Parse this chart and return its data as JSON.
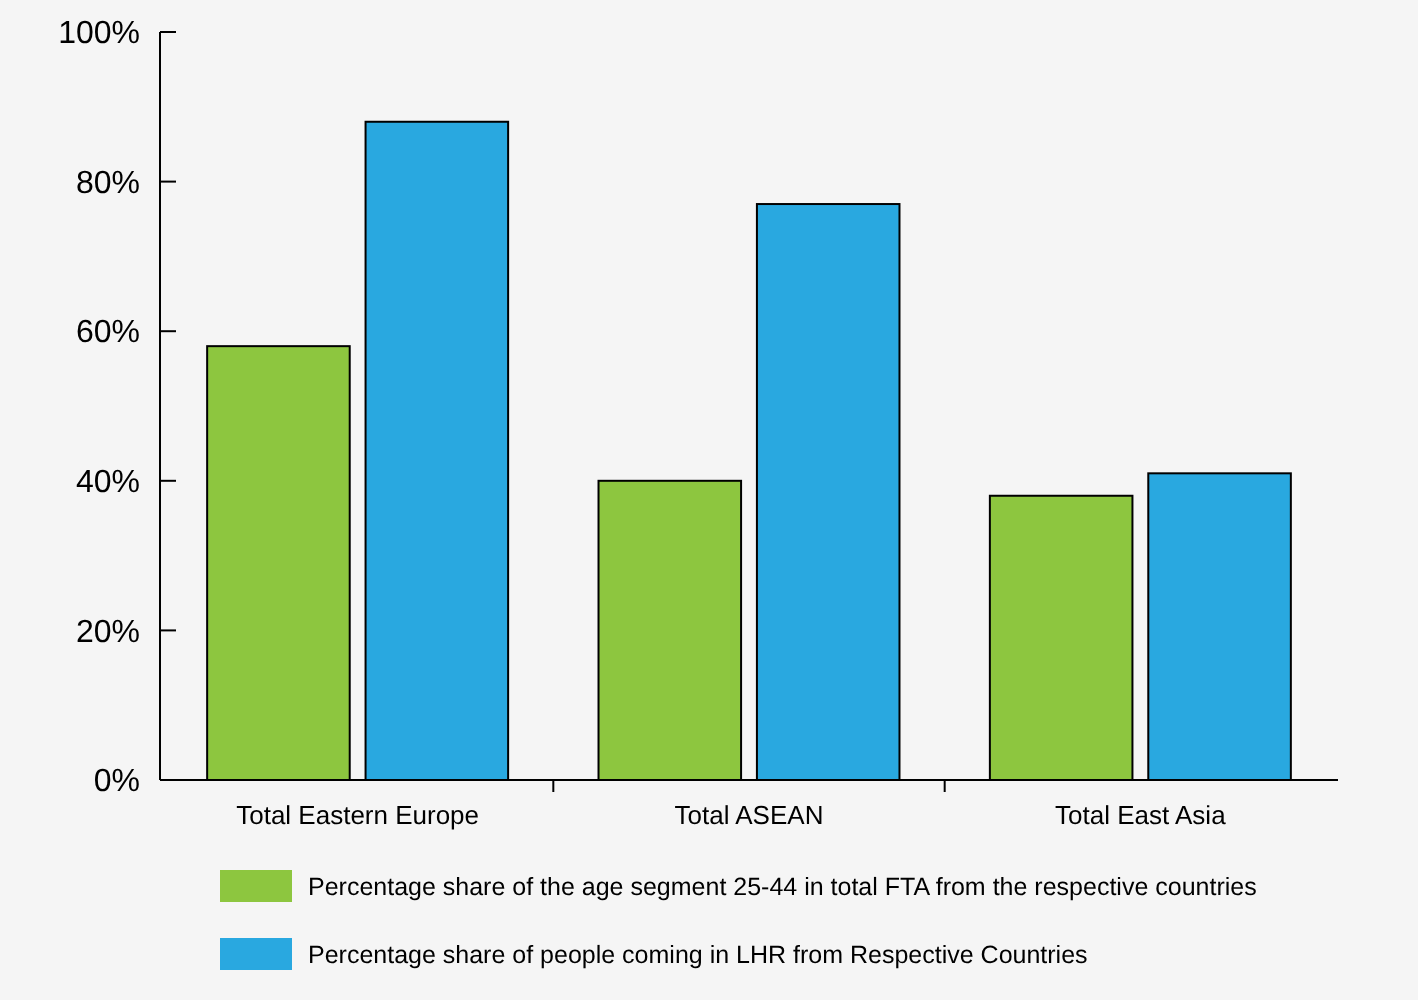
{
  "chart_data": {
    "type": "bar",
    "categories": [
      "Total Eastern Europe",
      "Total ASEAN",
      "Total East Asia"
    ],
    "series": [
      {
        "name": "Percentage share of the age segment 25-44 in total FTA from the respective countries",
        "color": "#8dc63f",
        "values": [
          58,
          40,
          38
        ]
      },
      {
        "name": "Percentage share of people coming in LHR from Respective Countries",
        "color": "#29a8e0",
        "values": [
          88,
          77,
          41
        ]
      }
    ],
    "ylim": [
      0,
      100
    ],
    "yticks": [
      {
        "value": 0,
        "label": "0%"
      },
      {
        "value": 20,
        "label": "20%"
      },
      {
        "value": 40,
        "label": "40%"
      },
      {
        "value": 60,
        "label": "60%"
      },
      {
        "value": 80,
        "label": "80%"
      },
      {
        "value": 100,
        "label": "100%"
      }
    ],
    "grid": false,
    "legend": "bottom"
  }
}
